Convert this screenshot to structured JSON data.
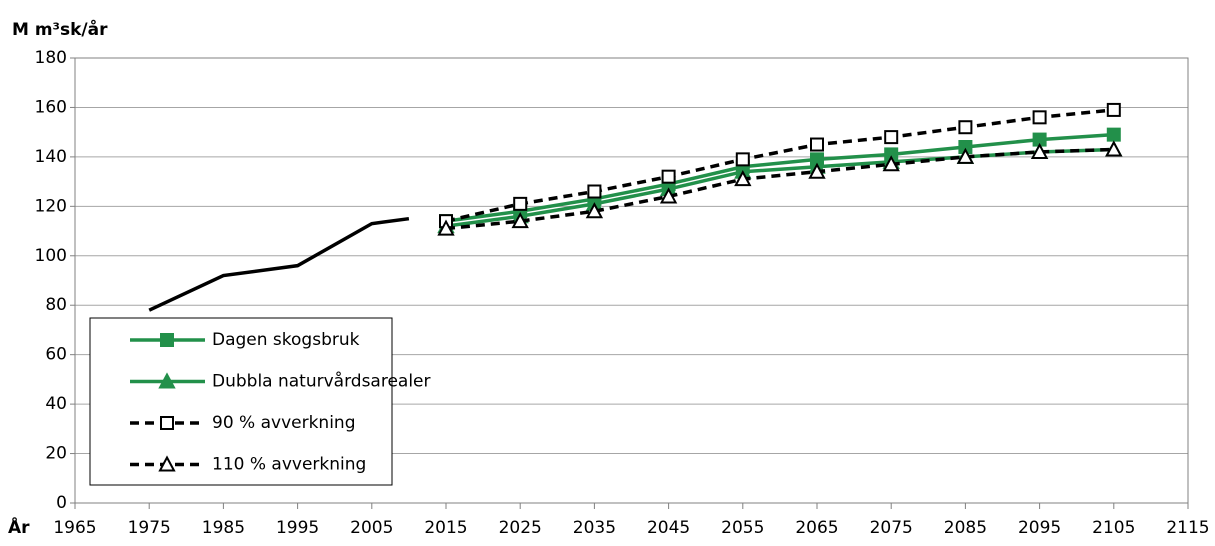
{
  "chart_data": {
    "type": "line",
    "ylabel": "M m³sk/år",
    "xlabel": "År",
    "xlim": [
      1965,
      2115
    ],
    "xticks": [
      1965,
      1975,
      1985,
      1995,
      2005,
      2015,
      2025,
      2035,
      2045,
      2055,
      2065,
      2075,
      2085,
      2095,
      2105,
      2115
    ],
    "ylim": [
      0,
      180
    ],
    "yticks": [
      0,
      20,
      40,
      60,
      80,
      100,
      120,
      140,
      160,
      180
    ],
    "grid": true,
    "legend": "lower left",
    "series": [
      {
        "color": "#000000",
        "x": [
          1975,
          1985,
          1995,
          2005,
          2010
        ],
        "values": [
          78,
          92,
          96,
          113,
          115
        ]
      },
      {
        "name": "Dagen skogsbruk",
        "color": "#22904a",
        "marker": "square",
        "marker_fill": "#22904a",
        "dashed": false,
        "x": [
          2015,
          2025,
          2035,
          2045,
          2055,
          2065,
          2075,
          2085,
          2095,
          2105
        ],
        "values": [
          114,
          118,
          123,
          129,
          136,
          139,
          141,
          144,
          147,
          149
        ]
      },
      {
        "name": "Dubbla naturvårdsarealer",
        "color": "#22904a",
        "marker": "triangle",
        "marker_fill": "#22904a",
        "dashed": false,
        "x": [
          2015,
          2025,
          2035,
          2045,
          2055,
          2065,
          2075,
          2085,
          2095,
          2105
        ],
        "values": [
          112,
          116,
          121,
          127,
          134,
          136,
          138,
          140,
          142,
          143
        ]
      },
      {
        "name": "90 % avverkning",
        "color": "#000000",
        "marker": "square",
        "marker_fill": "#ffffff",
        "dashed": true,
        "x": [
          2015,
          2025,
          2035,
          2045,
          2055,
          2065,
          2075,
          2085,
          2095,
          2105
        ],
        "values": [
          114,
          121,
          126,
          132,
          139,
          145,
          148,
          152,
          156,
          159
        ]
      },
      {
        "name": "110 % avverkning",
        "color": "#000000",
        "marker": "triangle",
        "marker_fill": "#ffffff",
        "dashed": true,
        "x": [
          2015,
          2025,
          2035,
          2045,
          2055,
          2065,
          2075,
          2085,
          2095,
          2105
        ],
        "values": [
          111,
          114,
          118,
          124,
          131,
          134,
          137,
          140,
          142,
          143
        ]
      }
    ]
  }
}
